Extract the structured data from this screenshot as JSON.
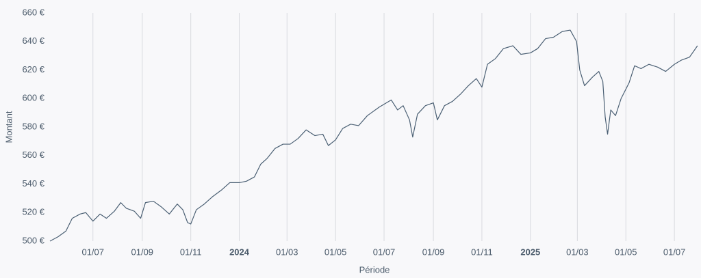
{
  "chart_data": {
    "type": "line",
    "y_label": "Montant",
    "x_label": "Période",
    "x": [
      "2023-05-08",
      "2023-05-18",
      "2023-05-28",
      "2023-06-05",
      "2023-06-15",
      "2023-06-22",
      "2023-07-01",
      "2023-07-10",
      "2023-07-18",
      "2023-07-28",
      "2023-08-05",
      "2023-08-12",
      "2023-08-22",
      "2023-08-30",
      "2023-09-05",
      "2023-09-15",
      "2023-09-25",
      "2023-10-05",
      "2023-10-15",
      "2023-10-22",
      "2023-10-28",
      "2023-11-01",
      "2023-11-08",
      "2023-11-18",
      "2023-11-28",
      "2023-12-10",
      "2023-12-20",
      "2024-01-01",
      "2024-01-10",
      "2024-01-20",
      "2024-01-28",
      "2024-02-05",
      "2024-02-15",
      "2024-02-25",
      "2024-03-05",
      "2024-03-15",
      "2024-03-25",
      "2024-04-05",
      "2024-04-15",
      "2024-04-22",
      "2024-05-01",
      "2024-05-10",
      "2024-05-20",
      "2024-05-30",
      "2024-06-10",
      "2024-06-25",
      "2024-07-10",
      "2024-07-18",
      "2024-07-25",
      "2024-08-02",
      "2024-08-06",
      "2024-08-12",
      "2024-08-22",
      "2024-09-01",
      "2024-09-06",
      "2024-09-15",
      "2024-09-25",
      "2024-10-05",
      "2024-10-15",
      "2024-10-25",
      "2024-11-01",
      "2024-11-08",
      "2024-11-18",
      "2024-11-28",
      "2024-12-10",
      "2024-12-20",
      "2025-01-01",
      "2025-01-10",
      "2025-01-20",
      "2025-01-30",
      "2025-02-10",
      "2025-02-20",
      "2025-02-28",
      "2025-03-04",
      "2025-03-10",
      "2025-03-20",
      "2025-03-28",
      "2025-04-02",
      "2025-04-05",
      "2025-04-08",
      "2025-04-12",
      "2025-04-18",
      "2025-04-25",
      "2025-05-05",
      "2025-05-12",
      "2025-05-20",
      "2025-05-30",
      "2025-06-10",
      "2025-06-20",
      "2025-07-01",
      "2025-07-10",
      "2025-07-20",
      "2025-07-30"
    ],
    "values": [
      500,
      503,
      507,
      516,
      519,
      520,
      514,
      519,
      516,
      521,
      527,
      523,
      521,
      516,
      527,
      528,
      524,
      519,
      526,
      522,
      513,
      512,
      522,
      526,
      531,
      536,
      541,
      541,
      542,
      545,
      554,
      558,
      565,
      568,
      568,
      572,
      578,
      574,
      575,
      567,
      571,
      579,
      582,
      581,
      588,
      594,
      599,
      592,
      595,
      585,
      573,
      589,
      595,
      597,
      585,
      595,
      598,
      603,
      609,
      614,
      608,
      624,
      628,
      635,
      637,
      631,
      632,
      635,
      642,
      643,
      647,
      648,
      640,
      620,
      609,
      615,
      619,
      612,
      587,
      575,
      592,
      588,
      600,
      611,
      623,
      621,
      624,
      622,
      619,
      624,
      627,
      629,
      637
    ],
    "color": "#4a5f73",
    "xlim": [
      "2023-05-08",
      "2025-07-31"
    ],
    "xticks": [
      {
        "value": "2023-07-01",
        "label": "01/07"
      },
      {
        "value": "2023-09-01",
        "label": "01/09"
      },
      {
        "value": "2023-11-01",
        "label": "01/11"
      },
      {
        "value": "2024-01-01",
        "label": "2024"
      },
      {
        "value": "2024-03-01",
        "label": "01/03"
      },
      {
        "value": "2024-05-01",
        "label": "01/05"
      },
      {
        "value": "2024-07-01",
        "label": "01/07"
      },
      {
        "value": "2024-09-01",
        "label": "01/09"
      },
      {
        "value": "2024-11-01",
        "label": "01/11"
      },
      {
        "value": "2025-01-01",
        "label": "2025"
      },
      {
        "value": "2025-03-01",
        "label": "01/03"
      },
      {
        "value": "2025-05-01",
        "label": "01/05"
      },
      {
        "value": "2025-07-01",
        "label": "01/07"
      }
    ],
    "ylim": [
      500,
      660
    ],
    "yticks": [
      {
        "value": 500,
        "label": "500 €"
      },
      {
        "value": 520,
        "label": "520 €"
      },
      {
        "value": 540,
        "label": "540 €"
      },
      {
        "value": 560,
        "label": "560 €"
      },
      {
        "value": 580,
        "label": "580 €"
      },
      {
        "value": 600,
        "label": "600 €"
      },
      {
        "value": 620,
        "label": "620 €"
      },
      {
        "value": 640,
        "label": "640 €"
      },
      {
        "value": 660,
        "label": "660 €"
      }
    ],
    "grid": true
  }
}
